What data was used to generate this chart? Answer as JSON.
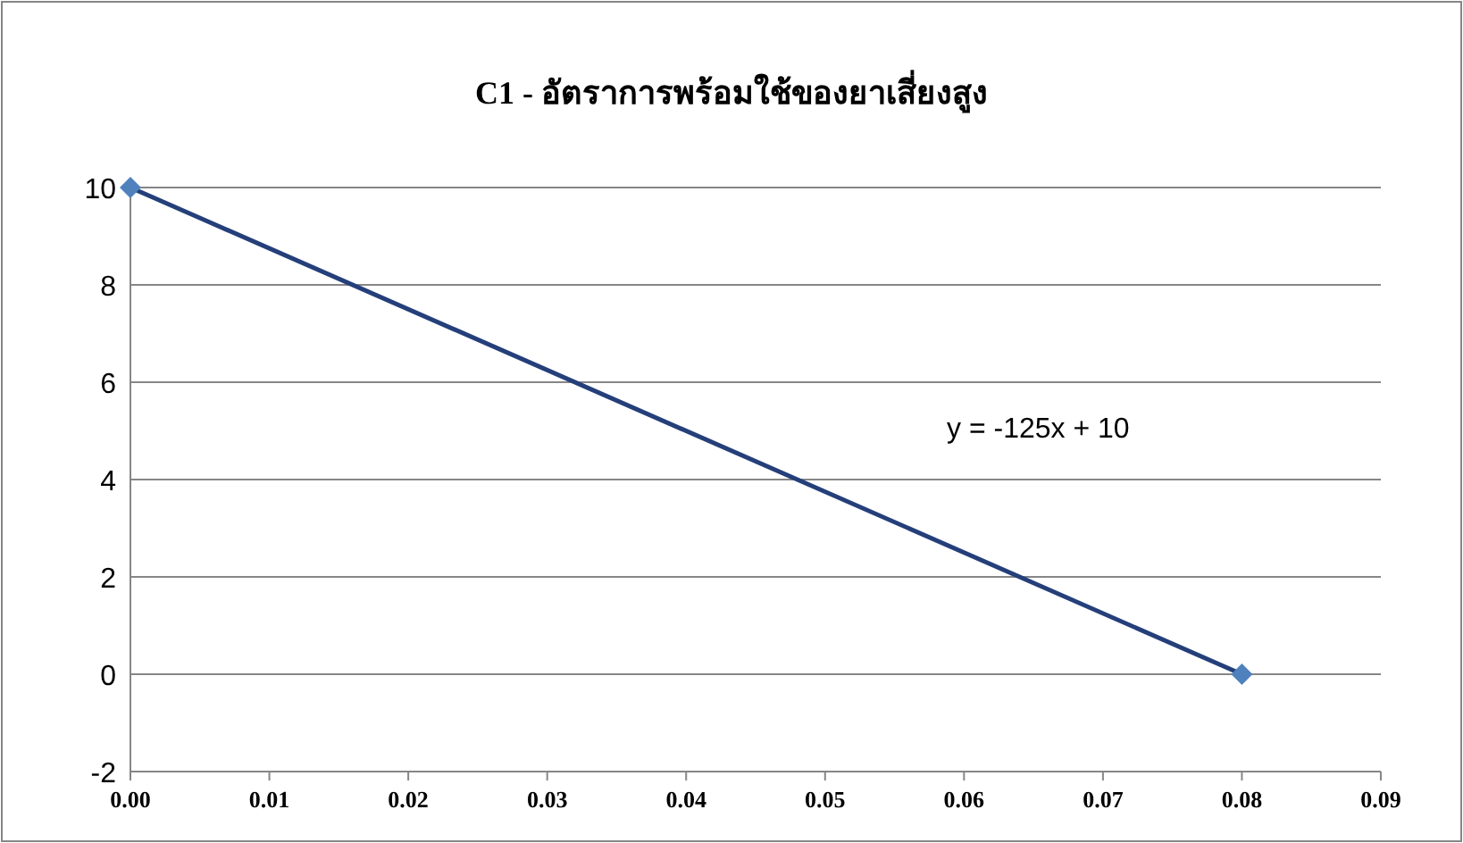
{
  "chart_data": {
    "type": "scatter",
    "title": "C1 - อัตราการพร้อมใช้ของยาเสี่ยงสูง",
    "x": [
      0,
      0.08
    ],
    "series": [
      {
        "color": "#4f81bd",
        "values": [
          10,
          0
        ]
      },
      {
        "type": "line",
        "x": [
          0,
          0.08
        ],
        "color": "#243f7a",
        "values": [
          10,
          0
        ],
        "marker": "none"
      }
    ],
    "marker": "diamond",
    "xlim": [
      0,
      0.09
    ],
    "xticks": [
      {
        "value": 0,
        "label": "0.00"
      },
      {
        "value": 0.01,
        "label": "0.01"
      },
      {
        "value": 0.02,
        "label": "0.02"
      },
      {
        "value": 0.03,
        "label": "0.03"
      },
      {
        "value": 0.04,
        "label": "0.04"
      },
      {
        "value": 0.05,
        "label": "0.05"
      },
      {
        "value": 0.06,
        "label": "0.06"
      },
      {
        "value": 0.07,
        "label": "0.07"
      },
      {
        "value": 0.08,
        "label": "0.08"
      },
      {
        "value": 0.09,
        "label": "0.09"
      }
    ],
    "ylim": [
      -2,
      10
    ],
    "yticks": [
      -2,
      0,
      2,
      4,
      6,
      8,
      10
    ],
    "grid": "y",
    "annotations": [
      "y = -125x + 10"
    ]
  }
}
